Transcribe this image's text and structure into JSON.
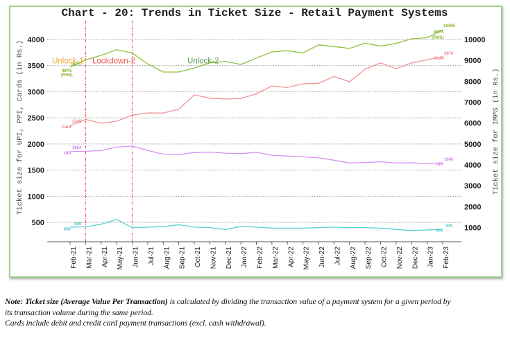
{
  "chart_data": {
    "type": "line",
    "title": "Chart - 20: Trends in Ticket Size - Retail Payment Systems",
    "xlabel": "",
    "ylabel_left": "Ticket size for UPI, PPI, Cards (in Rs.)",
    "ylabel_right": "Ticket size for IMPS (in Rs.)",
    "ylim_left": [
      130,
      4330
    ],
    "ylim_right": [
      325,
      10825
    ],
    "yticks_left": [
      500,
      1000,
      1500,
      2000,
      2500,
      3000,
      3500,
      4000
    ],
    "yticks_right": [
      1000,
      2000,
      3000,
      4000,
      5000,
      6000,
      7000,
      8000,
      9000,
      10000
    ],
    "grid": "horizontal dotted (left axis ticks)",
    "legend": "none (inline series labels at line ends)",
    "categories": [
      "Feb-21",
      "Mar-21",
      "Apr-21",
      "May-21",
      "Jun-21",
      "Jul-21",
      "Aug-21",
      "Sep-21",
      "Oct-21",
      "Nov-21",
      "Dec-21",
      "Jan-22",
      "Feb-22",
      "Mar-22",
      "Apr-22",
      "May-22",
      "Jun-22",
      "Jul-22",
      "Aug-22",
      "Sep-22",
      "Oct-22",
      "Nov-22",
      "Dec-22",
      "Jan-23",
      "Feb-23"
    ],
    "series": [
      {
        "key": "imps",
        "name": "IMPS",
        "axis": "right",
        "color": "#8fc03a",
        "label_color": "#86b52f",
        "values": [
          8675,
          9020,
          9240,
          9510,
          9350,
          8820,
          8440,
          8440,
          8630,
          8880,
          8950,
          8800,
          9110,
          9400,
          9460,
          9350,
          9740,
          9660,
          9570,
          9820,
          9680,
          9810,
          10030,
          10080,
          10465
        ],
        "start_name": "IMPS",
        "start_name_2": "(RHS)",
        "start_value": "8675",
        "end_name": "IMPS",
        "end_name_2": "(RHS)",
        "end_value": "10465"
      },
      {
        "key": "cards",
        "name": "Card",
        "axis": "left",
        "color": "#f29292",
        "label_color": "#ee7f7f",
        "values": [
          2345,
          2470,
          2395,
          2435,
          2550,
          2595,
          2590,
          2665,
          2940,
          2875,
          2860,
          2870,
          2960,
          3110,
          3080,
          3150,
          3160,
          3290,
          3190,
          3430,
          3550,
          3440,
          3550,
          3610,
          3670
        ],
        "start_name": "Card",
        "start_value": "2345",
        "end_name": "Card",
        "end_value": "3670"
      },
      {
        "key": "upi",
        "name": "UPI",
        "axis": "left",
        "color": "#d690f0",
        "label_color": "#cc7eea",
        "values": [
          1854,
          1860,
          1875,
          1940,
          1960,
          1875,
          1805,
          1800,
          1835,
          1845,
          1825,
          1815,
          1840,
          1785,
          1770,
          1755,
          1735,
          1690,
          1635,
          1645,
          1660,
          1635,
          1640,
          1625,
          1640
        ],
        "start_name": "UPI",
        "start_value": "1854",
        "end_name": "UPI",
        "end_value": "1640"
      },
      {
        "key": "ppi",
        "name": "PPI",
        "axis": "left",
        "color": "#55cfd0",
        "label_color": "#3fc2c4",
        "values": [
          409,
          415,
          465,
          555,
          400,
          408,
          420,
          455,
          410,
          400,
          365,
          420,
          410,
          390,
          390,
          390,
          400,
          410,
          400,
          400,
          390,
          365,
          345,
          355,
          370
        ],
        "start_name": "PPI",
        "start_value": "409",
        "end_name": "PPI",
        "end_value": "370"
      }
    ],
    "markers": [
      {
        "at": "Mar-21",
        "color": "#f06060"
      },
      {
        "at": "Jun-21",
        "color": "#f06060"
      }
    ],
    "annotations": [
      {
        "text": "Unlock-1",
        "color": "#f5a833"
      },
      {
        "text": "Lockdown-2",
        "color": "#e95a52"
      },
      {
        "text": "Unlock-2",
        "color": "#4f9a46"
      }
    ]
  },
  "note": {
    "bold_prefix": "Note: Ticket size (Average Value Per Transaction)",
    "line1_rest": " is calculated by dividing the transaction value of a payment system for a given period by",
    "line2": "its transaction volume during the same period.",
    "line3": "Cards include debit and credit card payment transactions (excl. cash withdrawal)."
  }
}
